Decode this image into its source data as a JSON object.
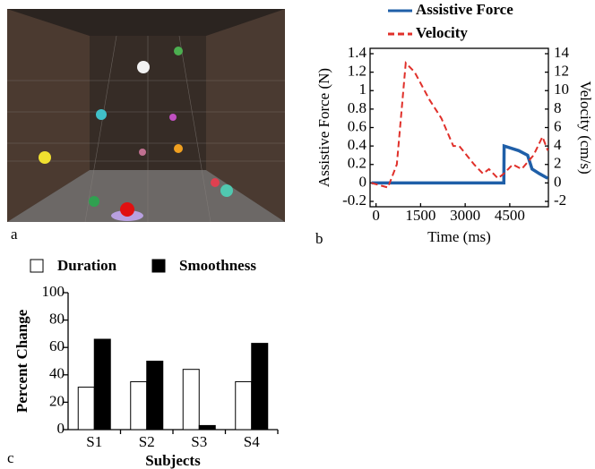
{
  "panel_labels": [
    "a",
    "b",
    "c"
  ],
  "chart_data": [
    {
      "type": "line",
      "xlabel": "Time (ms)",
      "ylabel": "Assistive Force (N)",
      "y2label": "Velocity (cm/s)",
      "xlim": [
        -200,
        5800
      ],
      "xticks": [
        0,
        1500,
        3000,
        4500
      ],
      "ylim": [
        -0.2,
        1.4
      ],
      "yticks": [
        -0.2,
        0,
        0.2,
        0.4,
        0.6,
        0.8,
        1,
        1.2,
        1.4
      ],
      "y2lim": [
        -2,
        14
      ],
      "y2ticks": [
        -2,
        0,
        2,
        4,
        6,
        8,
        10,
        12,
        14
      ],
      "legend": "top",
      "series": [
        {
          "name": "Assistive Force",
          "color": "#1f5fa8",
          "style": "solid",
          "x": [
            -150,
            4300,
            4310,
            4800,
            5100,
            5250,
            5500,
            5780
          ],
          "values": [
            0,
            0,
            0.4,
            0.35,
            0.3,
            0.15,
            0.1,
            0.05
          ]
        },
        {
          "name": "Velocity",
          "color": "#e0302a",
          "style": "dashed",
          "axis": "y2",
          "x": [
            -150,
            400,
            700,
            1000,
            1300,
            1800,
            2200,
            2600,
            2800,
            3300,
            3600,
            3800,
            4100,
            4300,
            4600,
            4900,
            5300,
            5600,
            5780
          ],
          "values": [
            0,
            -0.5,
            2,
            13,
            12,
            9,
            7,
            4,
            4,
            2,
            1,
            1.5,
            0.5,
            1,
            2,
            1.5,
            3,
            5,
            3.5
          ]
        }
      ]
    },
    {
      "type": "bar",
      "xlabel": "Subjects",
      "ylabel": "Percent Change",
      "categories": [
        "S1",
        "S2",
        "S3",
        "S4"
      ],
      "ylim": [
        0,
        100
      ],
      "yticks": [
        0,
        20,
        40,
        60,
        80,
        100
      ],
      "legend": "top",
      "series": [
        {
          "name": "Duration",
          "color": "#ffffff",
          "values": [
            31,
            35,
            44,
            35
          ]
        },
        {
          "name": "Smoothness",
          "color": "#000000",
          "values": [
            66,
            50,
            3,
            63
          ]
        }
      ]
    }
  ]
}
